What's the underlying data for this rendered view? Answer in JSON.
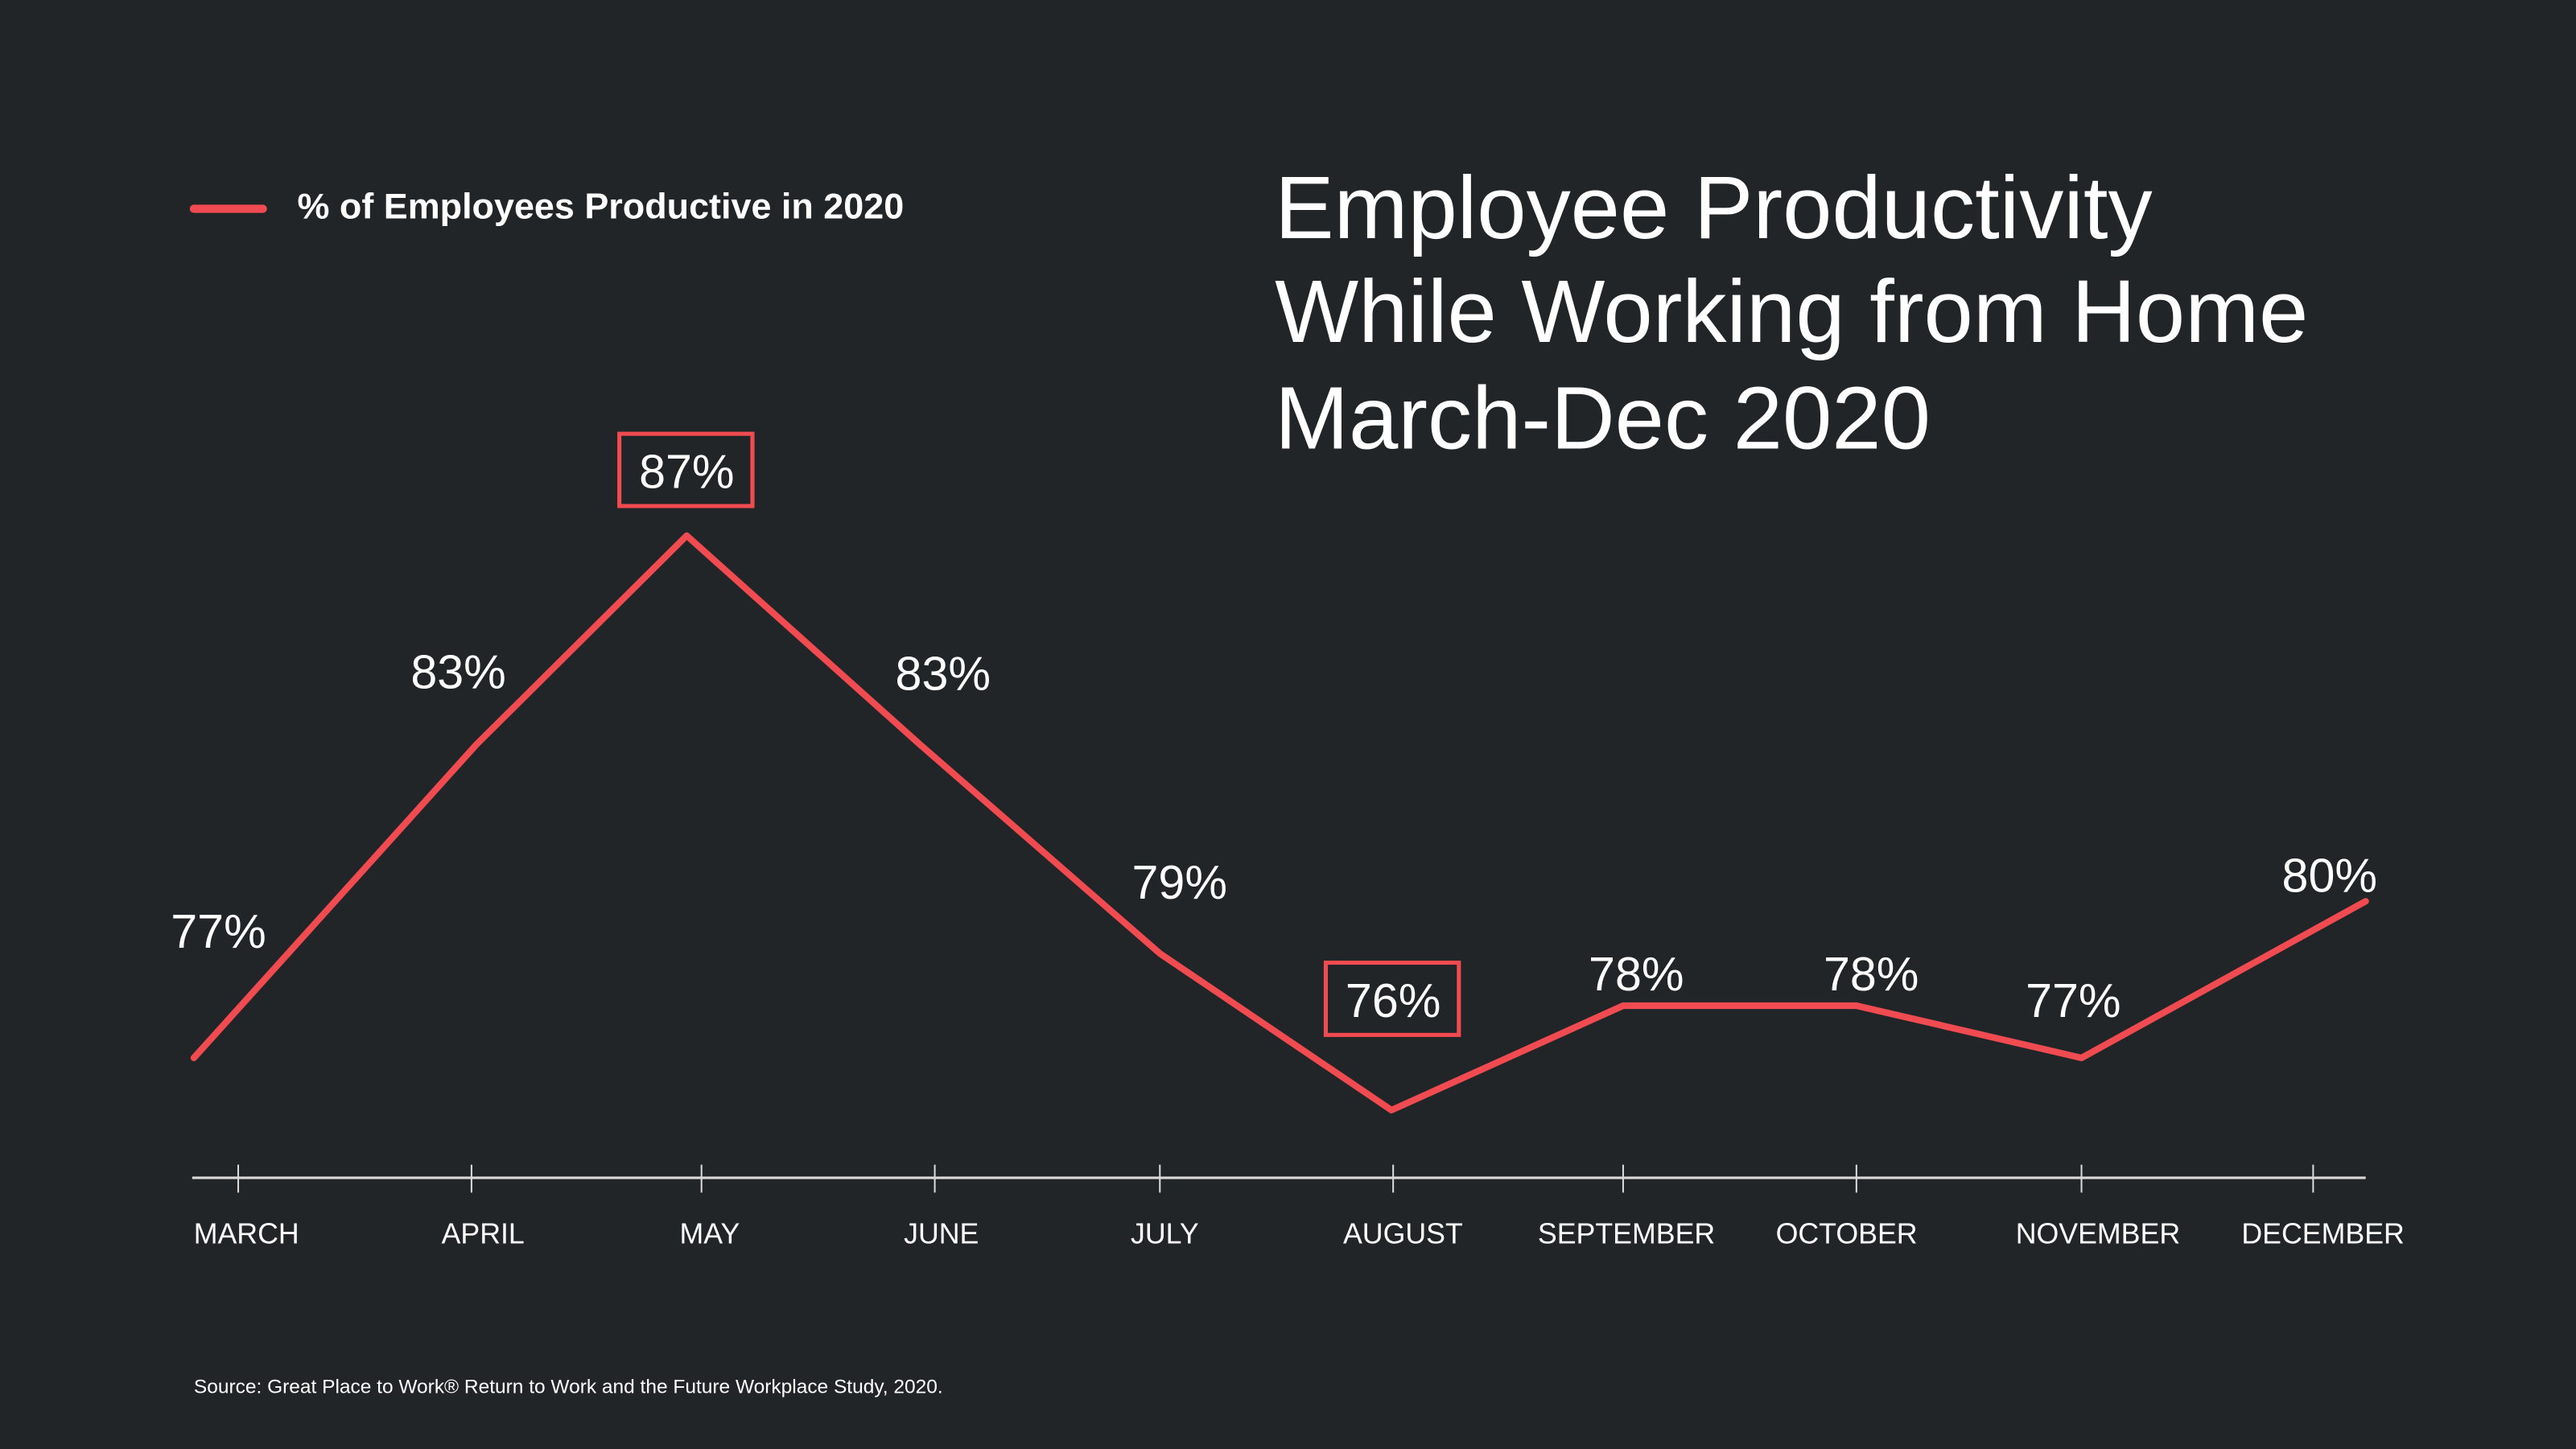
{
  "chart_data": {
    "type": "line",
    "title": [
      "Employee Productivity",
      "While Working from Home",
      "March-Dec 2020"
    ],
    "legend": {
      "label": "% of Employees Productive in 2020",
      "placement": "top-left"
    },
    "categories": [
      "MARCH",
      "APRIL",
      "MAY",
      "JUNE",
      "JULY",
      "AUGUST",
      "SEPTEMBER",
      "OCTOBER",
      "NOVEMBER",
      "DECEMBER"
    ],
    "series": [
      {
        "name": "% of Employees Productive in 2020",
        "values": [
          77,
          83,
          87,
          83,
          79,
          76,
          78,
          78,
          77,
          80
        ],
        "color": "#f04b50"
      }
    ],
    "data_labels": [
      "77%",
      "83%",
      "87%",
      "83%",
      "79%",
      "76%",
      "78%",
      "78%",
      "77%",
      "80%"
    ],
    "highlighted": [
      "MAY",
      "AUGUST"
    ],
    "ylabel": "",
    "xlabel": "",
    "grid": false,
    "source": "Source: Great Place to Work® Return to Work and the Future Workplace Study, 2020."
  },
  "colors": {
    "background": "#222527",
    "accent": "#f04b50",
    "axis": "#d9d9d9",
    "text": "#ffffff"
  }
}
